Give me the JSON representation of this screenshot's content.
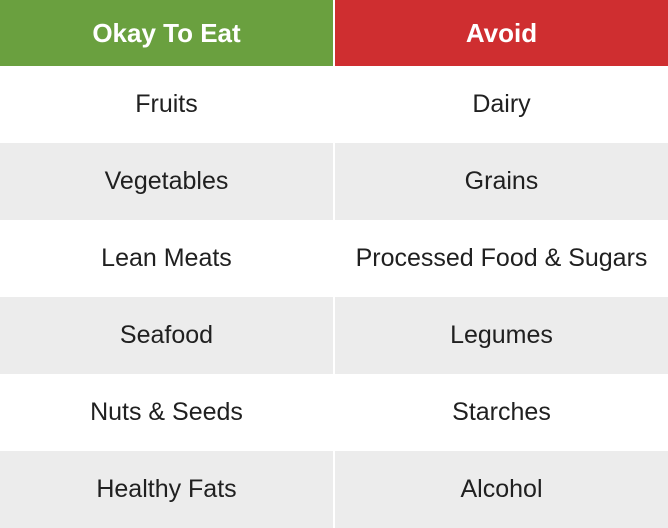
{
  "table": {
    "columns": [
      {
        "label": "Okay To Eat",
        "header_bg": "#6aa03f"
      },
      {
        "label": "Avoid",
        "header_bg": "#cf2e30"
      }
    ],
    "rows": [
      [
        "Fruits",
        "Dairy"
      ],
      [
        "Vegetables",
        "Grains"
      ],
      [
        "Lean Meats",
        "Processed Food & Sugars"
      ],
      [
        "Seafood",
        "Legumes"
      ],
      [
        "Nuts & Seeds",
        "Starches"
      ],
      [
        "Healthy Fats",
        "Alcohol"
      ]
    ],
    "row_bg_odd": "#ffffff",
    "row_bg_even": "#ececec",
    "text_color": "#202020",
    "header_text_color": "#ffffff",
    "header_fontsize": 26,
    "cell_fontsize": 25,
    "border_color": "#ffffff"
  }
}
